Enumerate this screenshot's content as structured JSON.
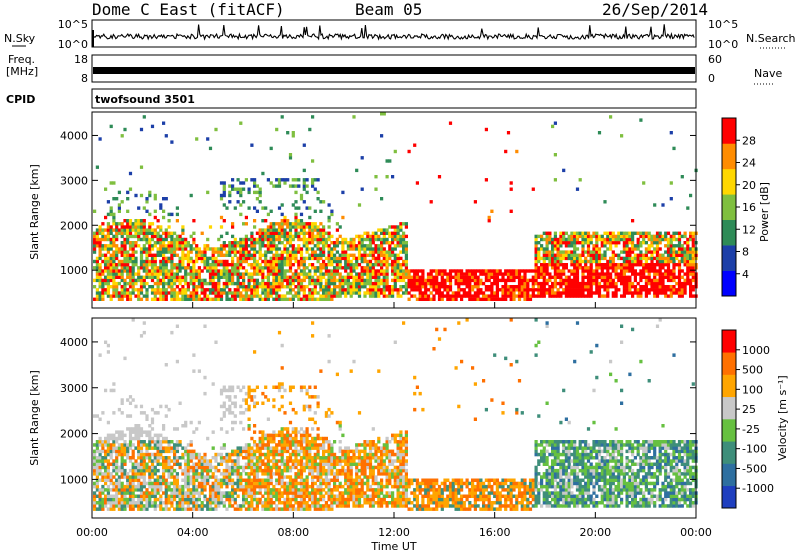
{
  "header": {
    "radar": "Dome C East (fitACF)",
    "beam": "Beam 05",
    "date": "26/Sep/2014"
  },
  "strips": {
    "nsky_label": "N.Sky",
    "nsearch_label": "N.Search",
    "nsky_ticks": [
      "10^5",
      "10^0"
    ],
    "nsearch_ticks": [
      "10^5",
      "10^0"
    ],
    "freq_label_1": "Freq.",
    "freq_label_2": "[MHz]",
    "freq_ticks": [
      "18",
      "8"
    ],
    "nave_label": "Nave",
    "nave_ticks": [
      "60",
      "0"
    ],
    "cpid_label": "CPID",
    "cpid_value": "twofsound 3501"
  },
  "chart_data": [
    {
      "type": "heatmap",
      "panel": "power",
      "ylabel": "Slant Range [km]",
      "yticks": [
        "1000",
        "2000",
        "3000",
        "4000"
      ],
      "ylim": [
        180,
        4500
      ],
      "xlim_hours": [
        0,
        24
      ],
      "colorbar_label": "Power [dB]",
      "colorbar_ticks": [
        "28",
        "24",
        "20",
        "16",
        "12",
        "8",
        "4"
      ],
      "colorbar_range": [
        0,
        32
      ],
      "colors": [
        "#0000ff",
        "#1c3fa8",
        "#2e8b57",
        "#7fbf3f",
        "#ffd700",
        "#ff8c00",
        "#ff0000"
      ]
    },
    {
      "type": "heatmap",
      "panel": "velocity",
      "ylabel": "Slant Range [km]",
      "yticks": [
        "1000",
        "2000",
        "3000",
        "4000"
      ],
      "ylim": [
        180,
        4500
      ],
      "xlim_hours": [
        0,
        24
      ],
      "colorbar_label": "Velocity [m s⁻¹]",
      "colorbar_ticks": [
        "1000",
        "500",
        "100",
        "25",
        "-25",
        "-100",
        "-500",
        "-1000"
      ],
      "colors": [
        "#1f3fbf",
        "#2e6fa0",
        "#3e8e7a",
        "#66c040",
        "#c8c8c8",
        "#ffa500",
        "#ff7000",
        "#ff0000"
      ]
    }
  ],
  "xaxis": {
    "ticks": [
      "00:00",
      "04:00",
      "08:00",
      "12:00",
      "16:00",
      "20:00",
      "00:00"
    ],
    "label": "Time UT"
  }
}
